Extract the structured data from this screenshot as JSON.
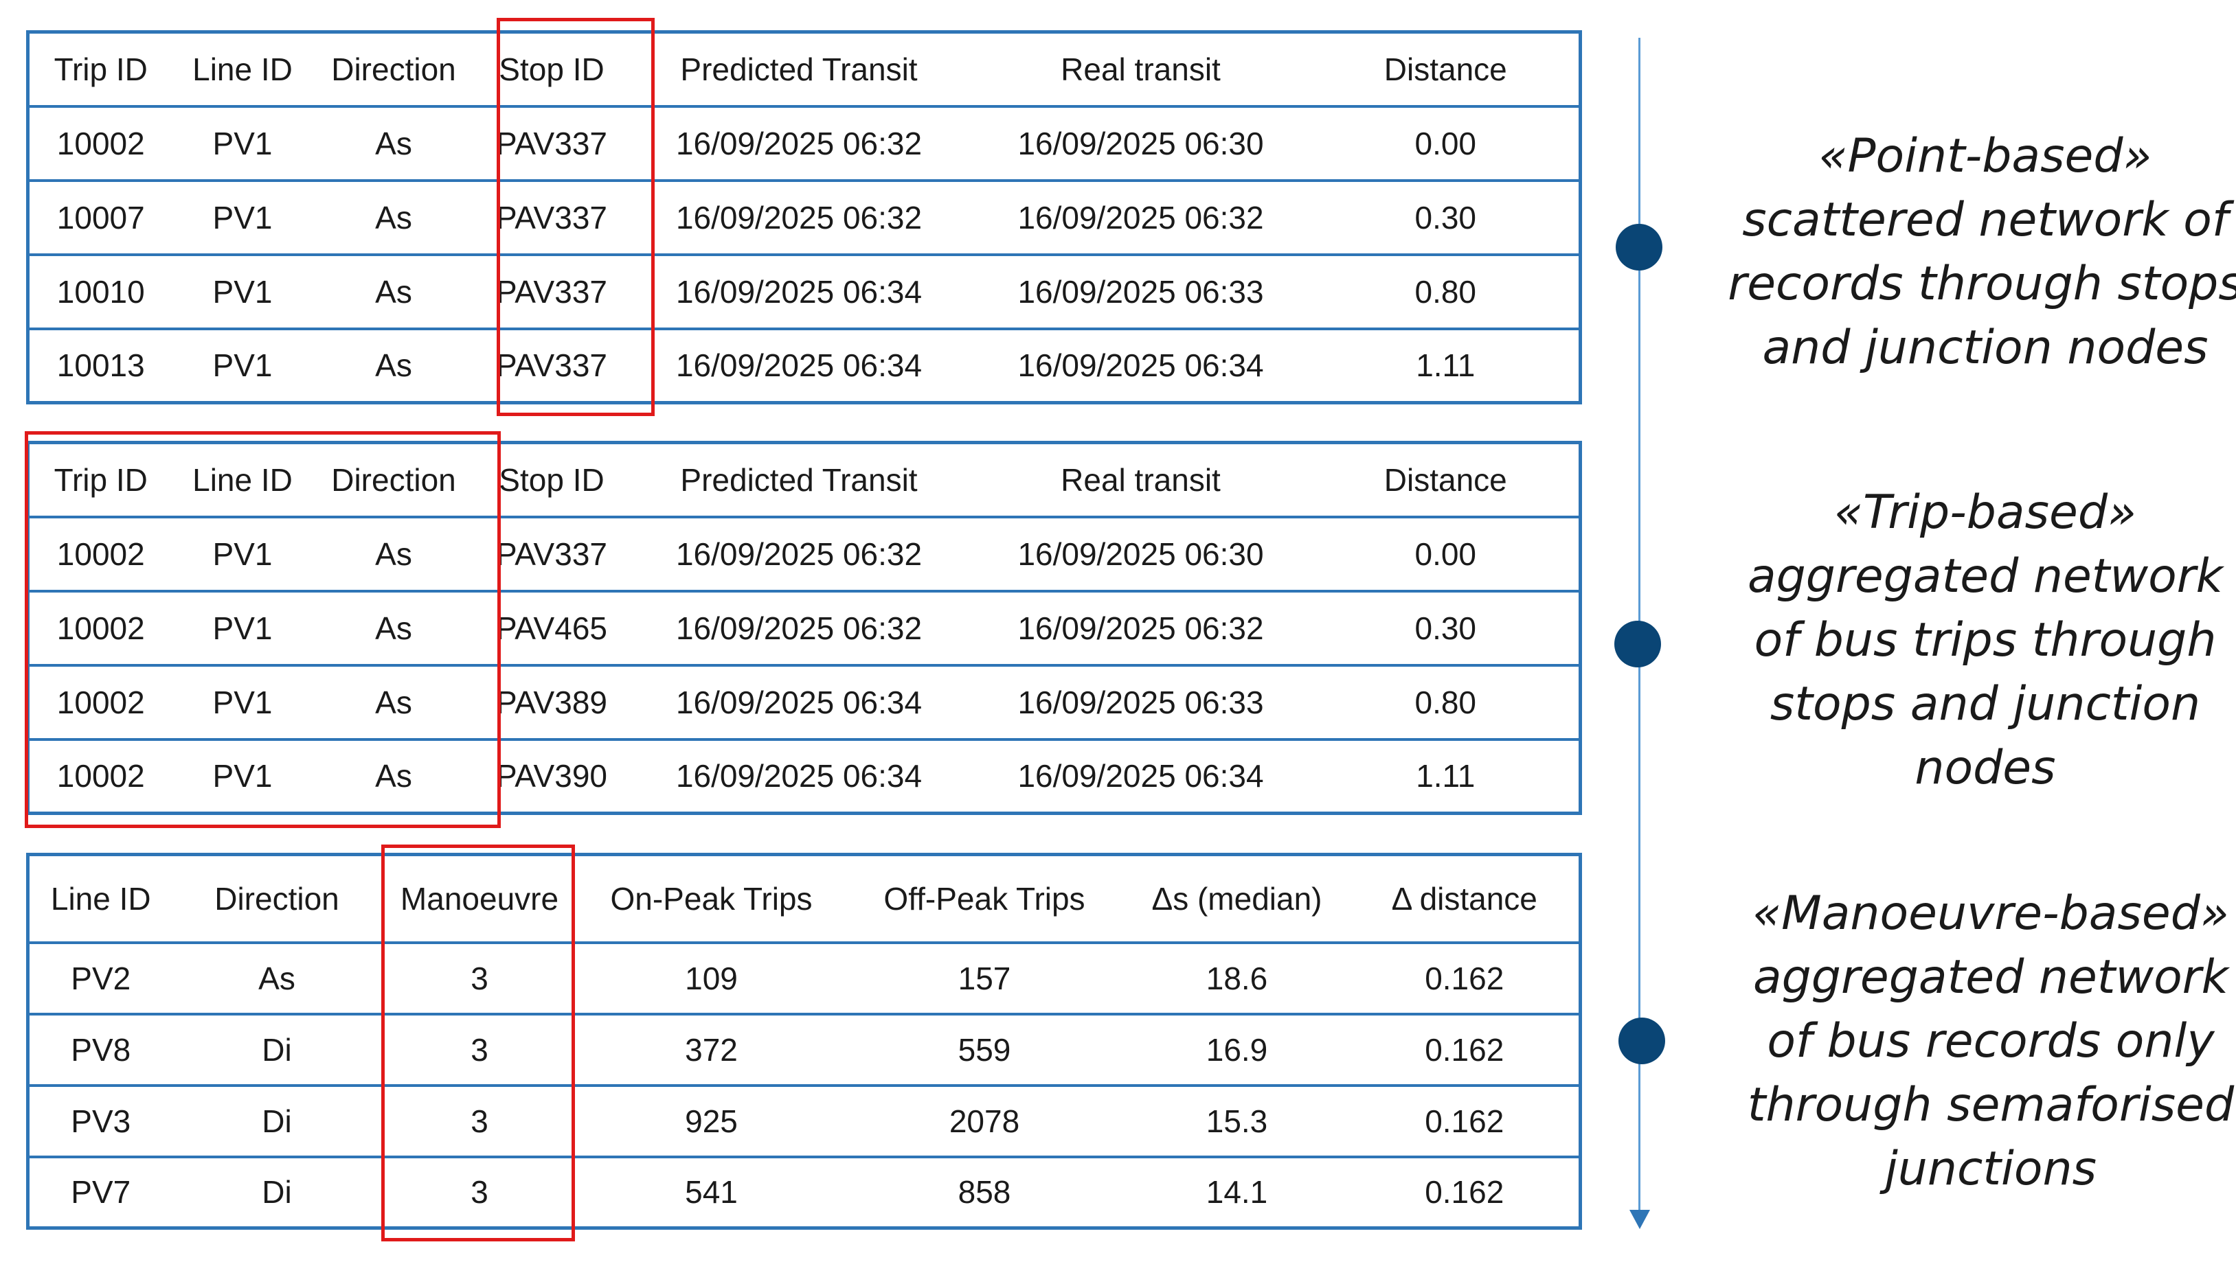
{
  "tables": [
    {
      "headers": [
        "Trip ID",
        "Line ID",
        "Direction",
        "Stop ID",
        "Predicted Transit",
        "Real transit",
        "Distance"
      ],
      "rows": [
        [
          "10002",
          "PV1",
          "As",
          "PAV337",
          "16/09/2025 06:32",
          "16/09/2025 06:30",
          "0.00"
        ],
        [
          "10007",
          "PV1",
          "As",
          "PAV337",
          "16/09/2025 06:32",
          "16/09/2025 06:32",
          "0.30"
        ],
        [
          "10010",
          "PV1",
          "As",
          "PAV337",
          "16/09/2025 06:34",
          "16/09/2025 06:33",
          "0.80"
        ],
        [
          "10013",
          "PV1",
          "As",
          "PAV337",
          "16/09/2025 06:34",
          "16/09/2025 06:34",
          "1.11"
        ]
      ]
    },
    {
      "headers": [
        "Trip ID",
        "Line ID",
        "Direction",
        "Stop ID",
        "Predicted Transit",
        "Real transit",
        "Distance"
      ],
      "rows": [
        [
          "10002",
          "PV1",
          "As",
          "PAV337",
          "16/09/2025 06:32",
          "16/09/2025 06:30",
          "0.00"
        ],
        [
          "10002",
          "PV1",
          "As",
          "PAV465",
          "16/09/2025 06:32",
          "16/09/2025 06:32",
          "0.30"
        ],
        [
          "10002",
          "PV1",
          "As",
          "PAV389",
          "16/09/2025 06:34",
          "16/09/2025 06:33",
          "0.80"
        ],
        [
          "10002",
          "PV1",
          "As",
          "PAV390",
          "16/09/2025 06:34",
          "16/09/2025 06:34",
          "1.11"
        ]
      ]
    },
    {
      "headers": [
        "Line ID",
        "Direction",
        "Manoeuvre",
        "On-Peak Trips",
        "Off-Peak Trips",
        "Δs (median)",
        "Δ distance"
      ],
      "rows": [
        [
          "PV2",
          "As",
          "3",
          "109",
          "157",
          "18.6",
          "0.162"
        ],
        [
          "PV8",
          "Di",
          "3",
          "372",
          "559",
          "16.9",
          "0.162"
        ],
        [
          "PV3",
          "Di",
          "3",
          "925",
          "2078",
          "15.3",
          "0.162"
        ],
        [
          "PV7",
          "Di",
          "3",
          "541",
          "858",
          "14.1",
          "0.162"
        ]
      ]
    }
  ],
  "labels": [
    [
      "«Point-based»",
      "scattered network of",
      "records through stops",
      "and junction nodes"
    ],
    [
      "«Trip-based»",
      "aggregated network",
      "of bus trips through",
      "stops and junction",
      "nodes"
    ],
    [
      "«Manoeuvre-based»",
      "aggregated network",
      "of bus records only",
      "through semaforised",
      "junctions"
    ]
  ],
  "colors": {
    "table_border": "#2e75b6",
    "highlight": "#e01a1a",
    "timeline": "#5b9bd5",
    "dot": "#0a4575"
  }
}
